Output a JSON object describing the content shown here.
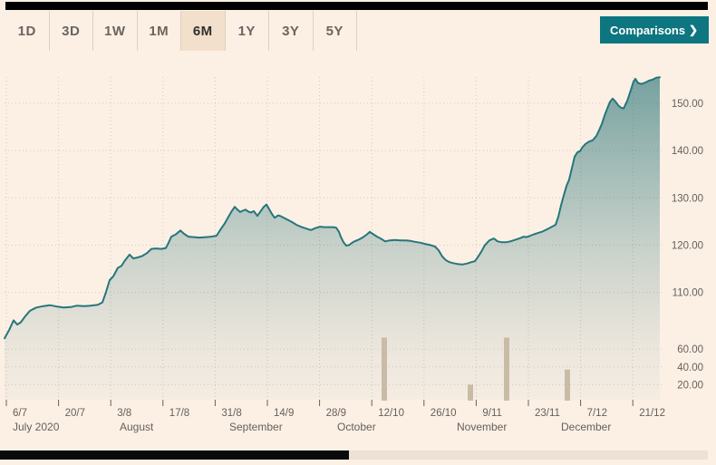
{
  "toolbar": {
    "ranges": [
      {
        "label": "1D",
        "selected": false
      },
      {
        "label": "3D",
        "selected": false
      },
      {
        "label": "1W",
        "selected": false
      },
      {
        "label": "1M",
        "selected": false
      },
      {
        "label": "6M",
        "selected": true
      },
      {
        "label": "1Y",
        "selected": false
      },
      {
        "label": "3Y",
        "selected": false
      },
      {
        "label": "5Y",
        "selected": false
      }
    ],
    "comparisons_label": "Comparisons",
    "chevron_icon": "❯"
  },
  "colors": {
    "background": "#fcf0e5",
    "accent_teal": "#0d7680",
    "price_line": "#26767c",
    "area_fill_base": "#1d6d72",
    "volume_bar": "#c8bca6",
    "selected_range_bg": "#f2e0cc",
    "axis_text": "#66605b",
    "grid": "#d6c8bc",
    "scrollbar_thumb": "#0a0a0a",
    "scrollbar_track": "#ece1d5"
  },
  "chart_data": {
    "type": "area",
    "period_shown": "6M",
    "x_unit": "px-offset from plot left edge; 0 ≈ 6 Jul 2020, 723 ≈ 24 Dec 2020 (14 days per 57.6 units)",
    "x_axis": {
      "ticks": [
        {
          "t": 2,
          "label": "6/7"
        },
        {
          "t": 59.6,
          "label": "20/7"
        },
        {
          "t": 117.2,
          "label": "3/8"
        },
        {
          "t": 174.8,
          "label": "17/8"
        },
        {
          "t": 232.4,
          "label": "31/8"
        },
        {
          "t": 290,
          "label": "14/9"
        },
        {
          "t": 347.6,
          "label": "28/9"
        },
        {
          "t": 405.2,
          "label": "12/10"
        },
        {
          "t": 462.8,
          "label": "26/10"
        },
        {
          "t": 520.4,
          "label": "9/11"
        },
        {
          "t": 578,
          "label": "23/11"
        },
        {
          "t": 635.6,
          "label": "7/12"
        },
        {
          "t": 693.2,
          "label": "21/12"
        }
      ],
      "months": [
        {
          "t": 9,
          "label": "July 2020"
        },
        {
          "t": 127,
          "label": "August"
        },
        {
          "t": 248,
          "label": "September"
        },
        {
          "t": 367,
          "label": "October"
        },
        {
          "t": 499,
          "label": "November"
        },
        {
          "t": 614,
          "label": "December"
        }
      ]
    },
    "y_axis": {
      "side": "right",
      "ticks": [
        110,
        120,
        130,
        140,
        150
      ],
      "tick_format": "0.00",
      "range": [
        99,
        156
      ],
      "grid": "dotted"
    },
    "volume_axis": {
      "side": "right",
      "ticks": [
        20,
        40,
        60
      ],
      "tick_format": "0.00",
      "range": [
        0,
        80
      ],
      "grid": "dotted"
    },
    "price": [
      [
        0,
        100.3
      ],
      [
        5,
        102.0
      ],
      [
        10,
        104.1
      ],
      [
        14,
        103.2
      ],
      [
        18,
        103.7
      ],
      [
        23,
        105.0
      ],
      [
        28,
        106.1
      ],
      [
        35,
        106.8
      ],
      [
        43,
        107.1
      ],
      [
        50,
        107.3
      ],
      [
        58,
        107.0
      ],
      [
        65,
        106.8
      ],
      [
        73,
        106.9
      ],
      [
        80,
        107.2
      ],
      [
        88,
        107.1
      ],
      [
        95,
        107.2
      ],
      [
        103,
        107.4
      ],
      [
        108,
        107.9
      ],
      [
        112,
        110.1
      ],
      [
        116,
        112.6
      ],
      [
        120,
        113.4
      ],
      [
        125,
        115.2
      ],
      [
        129,
        115.6
      ],
      [
        133,
        116.8
      ],
      [
        138,
        118.0
      ],
      [
        142,
        117.2
      ],
      [
        147,
        117.4
      ],
      [
        152,
        117.7
      ],
      [
        157,
        118.3
      ],
      [
        162,
        119.2
      ],
      [
        167,
        119.3
      ],
      [
        173,
        119.2
      ],
      [
        178,
        119.4
      ],
      [
        181,
        120.5
      ],
      [
        184,
        121.8
      ],
      [
        189,
        122.3
      ],
      [
        194,
        123.1
      ],
      [
        198,
        122.4
      ],
      [
        203,
        121.8
      ],
      [
        209,
        121.7
      ],
      [
        215,
        121.6
      ],
      [
        222,
        121.7
      ],
      [
        228,
        121.8
      ],
      [
        234,
        122.0
      ],
      [
        239,
        123.5
      ],
      [
        243,
        124.6
      ],
      [
        247,
        126.0
      ],
      [
        251,
        127.3
      ],
      [
        254,
        128.1
      ],
      [
        257,
        127.5
      ],
      [
        260,
        127.0
      ],
      [
        263,
        127.3
      ],
      [
        266,
        127.5
      ],
      [
        269,
        127.1
      ],
      [
        272,
        126.9
      ],
      [
        275,
        127.2
      ],
      [
        279,
        126.2
      ],
      [
        283,
        127.3
      ],
      [
        286,
        128.1
      ],
      [
        289,
        128.6
      ],
      [
        292,
        127.6
      ],
      [
        295,
        126.6
      ],
      [
        298,
        125.8
      ],
      [
        302,
        126.3
      ],
      [
        305,
        126.1
      ],
      [
        308,
        125.8
      ],
      [
        312,
        125.4
      ],
      [
        317,
        124.9
      ],
      [
        322,
        124.3
      ],
      [
        328,
        123.8
      ],
      [
        333,
        123.5
      ],
      [
        338,
        123.2
      ],
      [
        343,
        123.6
      ],
      [
        348,
        123.9
      ],
      [
        353,
        123.8
      ],
      [
        358,
        123.8
      ],
      [
        363,
        123.8
      ],
      [
        366,
        123.7
      ],
      [
        369,
        122.8
      ],
      [
        371,
        121.8
      ],
      [
        374,
        120.6
      ],
      [
        377,
        119.9
      ],
      [
        380,
        120.0
      ],
      [
        385,
        120.7
      ],
      [
        390,
        121.1
      ],
      [
        395,
        121.6
      ],
      [
        400,
        122.3
      ],
      [
        403,
        122.8
      ],
      [
        407,
        122.3
      ],
      [
        411,
        121.8
      ],
      [
        415,
        121.4
      ],
      [
        420,
        120.8
      ],
      [
        425,
        121.0
      ],
      [
        431,
        121.1
      ],
      [
        437,
        121.0
      ],
      [
        443,
        121.0
      ],
      [
        448,
        120.9
      ],
      [
        453,
        120.7
      ],
      [
        459,
        120.5
      ],
      [
        465,
        120.2
      ],
      [
        470,
        120.0
      ],
      [
        475,
        119.7
      ],
      [
        479,
        118.9
      ],
      [
        483,
        117.6
      ],
      [
        487,
        116.8
      ],
      [
        491,
        116.4
      ],
      [
        495,
        116.2
      ],
      [
        500,
        116.0
      ],
      [
        505,
        115.9
      ],
      [
        510,
        116.1
      ],
      [
        515,
        116.4
      ],
      [
        519,
        116.6
      ],
      [
        523,
        117.7
      ],
      [
        526,
        118.6
      ],
      [
        530,
        120.0
      ],
      [
        535,
        121.0
      ],
      [
        540,
        121.4
      ],
      [
        544,
        120.8
      ],
      [
        549,
        120.6
      ],
      [
        553,
        120.6
      ],
      [
        558,
        120.8
      ],
      [
        563,
        121.1
      ],
      [
        568,
        121.4
      ],
      [
        573,
        121.8
      ],
      [
        576,
        121.7
      ],
      [
        579,
        121.9
      ],
      [
        584,
        122.3
      ],
      [
        589,
        122.6
      ],
      [
        594,
        122.9
      ],
      [
        599,
        123.4
      ],
      [
        604,
        123.9
      ],
      [
        608,
        124.3
      ],
      [
        611,
        126.0
      ],
      [
        614,
        128.4
      ],
      [
        617,
        130.5
      ],
      [
        620,
        132.5
      ],
      [
        623,
        133.9
      ],
      [
        625,
        135.5
      ],
      [
        627,
        137.1
      ],
      [
        629,
        138.7
      ],
      [
        632,
        139.6
      ],
      [
        635,
        139.9
      ],
      [
        638,
        140.8
      ],
      [
        641,
        141.4
      ],
      [
        645,
        141.9
      ],
      [
        649,
        142.2
      ],
      [
        653,
        143.1
      ],
      [
        656,
        144.3
      ],
      [
        659,
        145.6
      ],
      [
        662,
        147.4
      ],
      [
        665,
        148.9
      ],
      [
        668,
        150.3
      ],
      [
        671,
        151.0
      ],
      [
        674,
        150.4
      ],
      [
        677,
        149.6
      ],
      [
        680,
        149.1
      ],
      [
        683,
        148.9
      ],
      [
        687,
        150.5
      ],
      [
        691,
        152.8
      ],
      [
        694,
        154.6
      ],
      [
        696,
        155.2
      ],
      [
        699,
        154.3
      ],
      [
        703,
        154.1
      ],
      [
        707,
        154.4
      ],
      [
        711,
        154.8
      ],
      [
        715,
        155.0
      ],
      [
        719,
        155.4
      ],
      [
        723,
        155.5
      ]
    ],
    "volume_bars": [
      {
        "t": 416,
        "value": 73
      },
      {
        "t": 511,
        "value": 20
      },
      {
        "t": 551,
        "value": 73
      },
      {
        "t": 618,
        "value": 37
      }
    ]
  }
}
